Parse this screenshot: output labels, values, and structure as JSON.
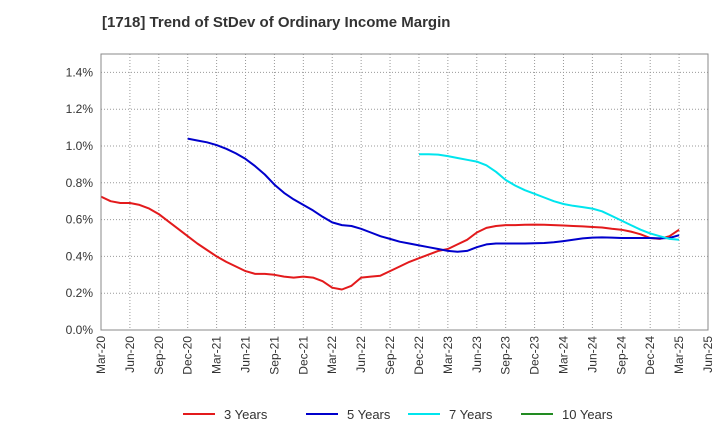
{
  "chart_data": {
    "type": "line",
    "title": "[1718]  Trend of StDev of Ordinary Income Margin",
    "xlabel": "",
    "ylabel": "",
    "ylim": [
      0,
      1.5
    ],
    "y_ticks": [
      "0.0%",
      "0.2%",
      "0.4%",
      "0.6%",
      "0.8%",
      "1.0%",
      "1.2%",
      "1.4%"
    ],
    "y_tick_values": [
      0,
      0.2,
      0.4,
      0.6,
      0.8,
      1.0,
      1.2,
      1.4
    ],
    "x_ticks": [
      "Mar-20",
      "Jun-20",
      "Sep-20",
      "Dec-20",
      "Mar-21",
      "Jun-21",
      "Sep-21",
      "Dec-21",
      "Mar-22",
      "Jun-22",
      "Sep-22",
      "Dec-22",
      "Mar-23",
      "Jun-23",
      "Sep-23",
      "Dec-23",
      "Mar-24",
      "Jun-24",
      "Sep-24",
      "Dec-24",
      "Mar-25",
      "Jun-25"
    ],
    "x_start": "Mar-20",
    "x_end": "Jun-25",
    "grid": true,
    "legend_position": "bottom",
    "series": [
      {
        "name": "3 Years",
        "color": "#e31a1c",
        "points": [
          [
            "Mar-20",
            0.725
          ],
          [
            "Apr-20",
            0.7
          ],
          [
            "May-20",
            0.69
          ],
          [
            "Jun-20",
            0.69
          ],
          [
            "Jul-20",
            0.68
          ],
          [
            "Aug-20",
            0.66
          ],
          [
            "Sep-20",
            0.63
          ],
          [
            "Oct-20",
            0.59
          ],
          [
            "Nov-20",
            0.55
          ],
          [
            "Dec-20",
            0.51
          ],
          [
            "Jan-21",
            0.47
          ],
          [
            "Feb-21",
            0.435
          ],
          [
            "Mar-21",
            0.4
          ],
          [
            "Apr-21",
            0.37
          ],
          [
            "May-21",
            0.345
          ],
          [
            "Jun-21",
            0.32
          ],
          [
            "Jul-21",
            0.305
          ],
          [
            "Aug-21",
            0.305
          ],
          [
            "Sep-21",
            0.3
          ],
          [
            "Oct-21",
            0.29
          ],
          [
            "Nov-21",
            0.285
          ],
          [
            "Dec-21",
            0.29
          ],
          [
            "Jan-22",
            0.285
          ],
          [
            "Feb-22",
            0.265
          ],
          [
            "Mar-22",
            0.23
          ],
          [
            "Apr-22",
            0.22
          ],
          [
            "May-22",
            0.24
          ],
          [
            "Jun-22",
            0.285
          ],
          [
            "Jul-22",
            0.29
          ],
          [
            "Aug-22",
            0.295
          ],
          [
            "Sep-22",
            0.32
          ],
          [
            "Oct-22",
            0.345
          ],
          [
            "Nov-22",
            0.37
          ],
          [
            "Dec-22",
            0.39
          ],
          [
            "Jan-23",
            0.41
          ],
          [
            "Feb-23",
            0.43
          ],
          [
            "Mar-23",
            0.44
          ],
          [
            "Apr-23",
            0.465
          ],
          [
            "May-23",
            0.49
          ],
          [
            "Jun-23",
            0.53
          ],
          [
            "Jul-23",
            0.555
          ],
          [
            "Aug-23",
            0.565
          ],
          [
            "Sep-23",
            0.57
          ],
          [
            "Oct-23",
            0.57
          ],
          [
            "Nov-23",
            0.572
          ],
          [
            "Dec-23",
            0.573
          ],
          [
            "Jan-24",
            0.572
          ],
          [
            "Feb-24",
            0.57
          ],
          [
            "Mar-24",
            0.568
          ],
          [
            "Apr-24",
            0.565
          ],
          [
            "May-24",
            0.563
          ],
          [
            "Jun-24",
            0.56
          ],
          [
            "Jul-24",
            0.557
          ],
          [
            "Aug-24",
            0.55
          ],
          [
            "Sep-24",
            0.545
          ],
          [
            "Oct-24",
            0.535
          ],
          [
            "Nov-24",
            0.52
          ],
          [
            "Dec-24",
            0.5
          ],
          [
            "Jan-25",
            0.495
          ],
          [
            "Feb-25",
            0.51
          ],
          [
            "Mar-25",
            0.545
          ]
        ]
      },
      {
        "name": "5 Years",
        "color": "#0000cc",
        "points": [
          [
            "Dec-20",
            1.04
          ],
          [
            "Jan-21",
            1.03
          ],
          [
            "Feb-21",
            1.02
          ],
          [
            "Mar-21",
            1.005
          ],
          [
            "Apr-21",
            0.985
          ],
          [
            "May-21",
            0.96
          ],
          [
            "Jun-21",
            0.93
          ],
          [
            "Jul-21",
            0.89
          ],
          [
            "Aug-21",
            0.845
          ],
          [
            "Sep-21",
            0.79
          ],
          [
            "Oct-21",
            0.745
          ],
          [
            "Nov-21",
            0.71
          ],
          [
            "Dec-21",
            0.68
          ],
          [
            "Jan-22",
            0.65
          ],
          [
            "Feb-22",
            0.615
          ],
          [
            "Mar-22",
            0.585
          ],
          [
            "Apr-22",
            0.57
          ],
          [
            "May-22",
            0.565
          ],
          [
            "Jun-22",
            0.55
          ],
          [
            "Jul-22",
            0.53
          ],
          [
            "Aug-22",
            0.51
          ],
          [
            "Sep-22",
            0.495
          ],
          [
            "Oct-22",
            0.48
          ],
          [
            "Nov-22",
            0.47
          ],
          [
            "Dec-22",
            0.46
          ],
          [
            "Jan-23",
            0.45
          ],
          [
            "Feb-23",
            0.44
          ],
          [
            "Mar-23",
            0.43
          ],
          [
            "Apr-23",
            0.425
          ],
          [
            "May-23",
            0.43
          ],
          [
            "Jun-23",
            0.45
          ],
          [
            "Jul-23",
            0.465
          ],
          [
            "Aug-23",
            0.47
          ],
          [
            "Sep-23",
            0.47
          ],
          [
            "Oct-23",
            0.47
          ],
          [
            "Nov-23",
            0.47
          ],
          [
            "Dec-23",
            0.472
          ],
          [
            "Jan-24",
            0.473
          ],
          [
            "Feb-24",
            0.477
          ],
          [
            "Mar-24",
            0.483
          ],
          [
            "Apr-24",
            0.49
          ],
          [
            "May-24",
            0.498
          ],
          [
            "Jun-24",
            0.502
          ],
          [
            "Jul-24",
            0.503
          ],
          [
            "Aug-24",
            0.502
          ],
          [
            "Sep-24",
            0.5
          ],
          [
            "Oct-24",
            0.5
          ],
          [
            "Nov-24",
            0.5
          ],
          [
            "Dec-24",
            0.5
          ],
          [
            "Jan-25",
            0.498
          ],
          [
            "Feb-25",
            0.5
          ],
          [
            "Mar-25",
            0.515
          ]
        ]
      },
      {
        "name": "7 Years",
        "color": "#00e5ee",
        "points": [
          [
            "Dec-22",
            0.955
          ],
          [
            "Jan-23",
            0.955
          ],
          [
            "Feb-23",
            0.953
          ],
          [
            "Mar-23",
            0.945
          ],
          [
            "Apr-23",
            0.935
          ],
          [
            "May-23",
            0.925
          ],
          [
            "Jun-23",
            0.915
          ],
          [
            "Jul-23",
            0.895
          ],
          [
            "Aug-23",
            0.86
          ],
          [
            "Sep-23",
            0.815
          ],
          [
            "Oct-23",
            0.785
          ],
          [
            "Nov-23",
            0.76
          ],
          [
            "Dec-23",
            0.74
          ],
          [
            "Jan-24",
            0.72
          ],
          [
            "Feb-24",
            0.7
          ],
          [
            "Mar-24",
            0.685
          ],
          [
            "Apr-24",
            0.675
          ],
          [
            "May-24",
            0.668
          ],
          [
            "Jun-24",
            0.66
          ],
          [
            "Jul-24",
            0.645
          ],
          [
            "Aug-24",
            0.62
          ],
          [
            "Sep-24",
            0.595
          ],
          [
            "Oct-24",
            0.57
          ],
          [
            "Nov-24",
            0.545
          ],
          [
            "Dec-24",
            0.525
          ],
          [
            "Jan-25",
            0.51
          ],
          [
            "Feb-25",
            0.495
          ],
          [
            "Mar-25",
            0.49
          ]
        ]
      },
      {
        "name": "10 Years",
        "color": "#228b22",
        "points": []
      }
    ]
  }
}
